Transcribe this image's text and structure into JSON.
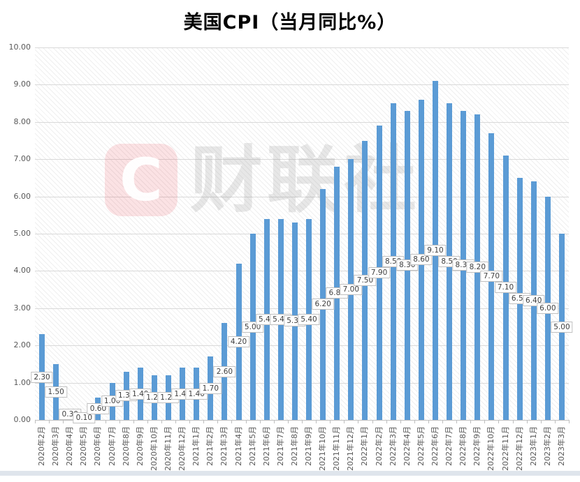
{
  "title": "美国CPI（当月同比%）",
  "watermark": {
    "logo_letter": "C",
    "text": "财联社"
  },
  "colors": {
    "bar": "#5B9BD5",
    "gridline": "#D9D9D9",
    "axis": "#BFBFBF",
    "label_border": "#C0C0C0",
    "label_text": "#404040",
    "axis_text": "#595959",
    "watermark_red": "#E84C55",
    "bottom_strip": "#DFE5EC"
  },
  "chart_data": {
    "type": "bar",
    "title": "美国CPI（当月同比%）",
    "categories": [
      "2020年2月",
      "2020年3月",
      "2020年4月",
      "2020年5月",
      "2020年6月",
      "2020年7月",
      "2020年8月",
      "2020年9月",
      "2020年10月",
      "2020年11月",
      "2020年12月",
      "2021年1月",
      "2021年2月",
      "2021年3月",
      "2021年4月",
      "2021年5月",
      "2021年6月",
      "2021年7月",
      "2021年8月",
      "2021年9月",
      "2021年10月",
      "2021年11月",
      "2021年12月",
      "2022年1月",
      "2022年2月",
      "2022年3月",
      "2022年4月",
      "2022年5月",
      "2022年6月",
      "2022年7月",
      "2022年8月",
      "2022年9月",
      "2022年10月",
      "2022年11月",
      "2022年12月",
      "2023年1月",
      "2023年2月",
      "2023年3月"
    ],
    "values": [
      2.3,
      1.5,
      0.3,
      0.1,
      0.6,
      1.0,
      1.3,
      1.4,
      1.2,
      1.2,
      1.4,
      1.4,
      1.7,
      2.6,
      4.2,
      5.0,
      5.4,
      5.4,
      5.3,
      5.4,
      6.2,
      6.8,
      7.0,
      7.5,
      7.9,
      8.5,
      8.3,
      8.6,
      9.1,
      8.5,
      8.3,
      8.2,
      7.7,
      7.1,
      6.5,
      6.4,
      6.0,
      5.0
    ],
    "xlabel": "",
    "ylabel": "",
    "ylim": [
      0,
      10
    ],
    "y_tick_step": 1,
    "y_tick_labels": [
      "0.00",
      "1.00",
      "2.00",
      "3.00",
      "4.00",
      "5.00",
      "6.00",
      "7.00",
      "8.00",
      "9.00",
      "10.00"
    ],
    "grid": true,
    "legend": false,
    "data_label_position": "center-of-bar",
    "bar_color": "#5B9BD5"
  }
}
